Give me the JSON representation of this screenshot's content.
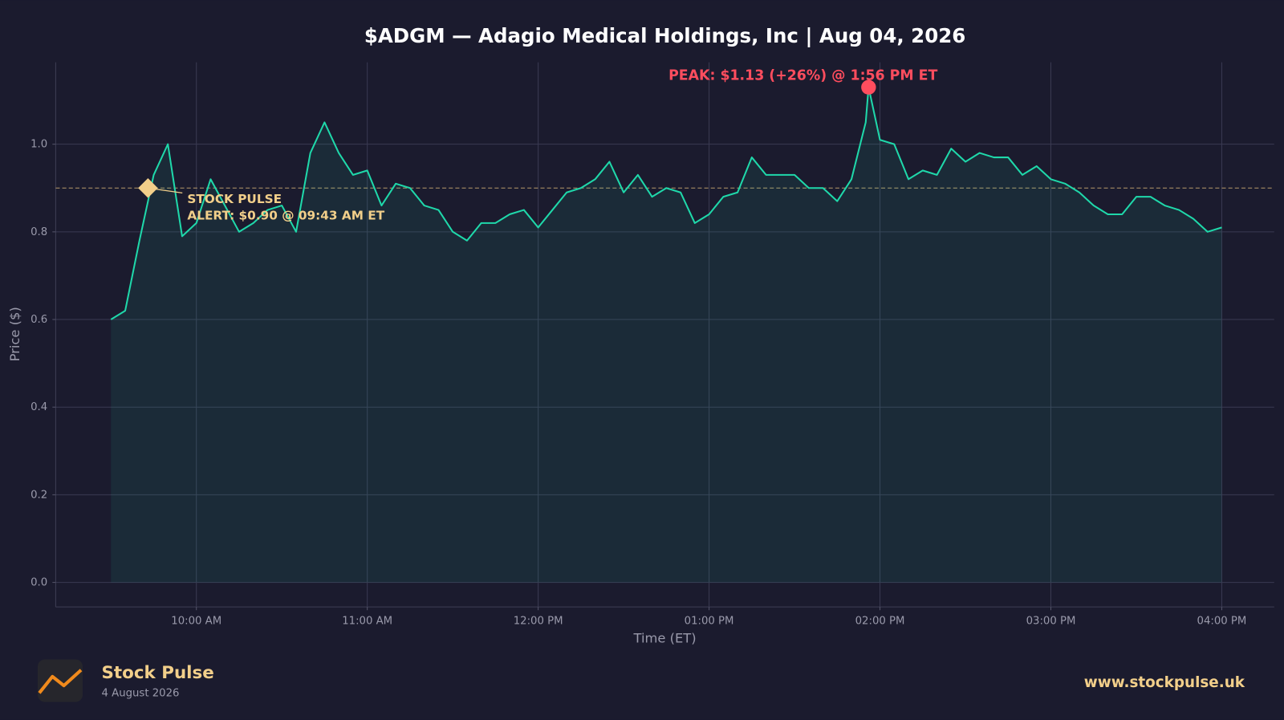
{
  "chart_data": {
    "type": "line",
    "title": "$ADGM — Adagio Medical Holdings, Inc  |  Aug 04, 2026",
    "x_label": "Time (ET)",
    "y_label": "Price ($)",
    "x": [
      570,
      575,
      580,
      585,
      590,
      595,
      600,
      605,
      610,
      615,
      620,
      625,
      630,
      635,
      640,
      645,
      650,
      655,
      660,
      665,
      670,
      675,
      680,
      685,
      690,
      695,
      700,
      705,
      710,
      715,
      720,
      725,
      730,
      735,
      740,
      745,
      750,
      755,
      760,
      765,
      770,
      775,
      780,
      785,
      790,
      795,
      800,
      805,
      810,
      815,
      820,
      825,
      830,
      835,
      836,
      840,
      845,
      850,
      855,
      860,
      865,
      870,
      875,
      880,
      885,
      890,
      895,
      900,
      905,
      910,
      915,
      920,
      925,
      930,
      935,
      940,
      945,
      950,
      955,
      960
    ],
    "series": [
      {
        "color": "#1fd8aa",
        "values": [
          0.6,
          0.62,
          0.78,
          0.93,
          1.0,
          0.79,
          0.82,
          0.92,
          0.86,
          0.8,
          0.82,
          0.85,
          0.86,
          0.8,
          0.98,
          1.05,
          0.98,
          0.93,
          0.94,
          0.86,
          0.91,
          0.9,
          0.86,
          0.85,
          0.8,
          0.78,
          0.82,
          0.82,
          0.84,
          0.85,
          0.81,
          0.85,
          0.89,
          0.9,
          0.92,
          0.96,
          0.89,
          0.93,
          0.88,
          0.9,
          0.89,
          0.82,
          0.84,
          0.88,
          0.89,
          0.97,
          0.93,
          0.93,
          0.93,
          0.9,
          0.9,
          0.87,
          0.92,
          1.05,
          1.13,
          1.01,
          1.0,
          0.92,
          0.94,
          0.93,
          0.99,
          0.96,
          0.98,
          0.97,
          0.97,
          0.93,
          0.95,
          0.92,
          0.91,
          0.89,
          0.86,
          0.84,
          0.84,
          0.88,
          0.88,
          0.86,
          0.85,
          0.83,
          0.8,
          0.81
        ]
      }
    ],
    "xlim": [
      550.6,
      978.4
    ],
    "xticks": [
      {
        "value": 600,
        "label": "10:00 AM"
      },
      {
        "value": 660,
        "label": "11:00 AM"
      },
      {
        "value": 720,
        "label": "12:00 PM"
      },
      {
        "value": 780,
        "label": "01:00 PM"
      },
      {
        "value": 840,
        "label": "02:00 PM"
      },
      {
        "value": 900,
        "label": "03:00 PM"
      },
      {
        "value": 960,
        "label": "04:00 PM"
      }
    ],
    "ylim": [
      -0.056,
      1.187
    ],
    "yticks": [
      {
        "value": 0,
        "label": "0.0"
      },
      0.2,
      0.4,
      0.6,
      0.8,
      {
        "value": 1,
        "label": "1.0"
      }
    ],
    "grid": true,
    "reference_line": {
      "value": 0.9,
      "color": "#b59a6a"
    },
    "annotations": [
      {
        "text": "PEAK: $1.13 (+26%) @ 1:56 PM ET",
        "x": 836,
        "y": 1.13,
        "color": "#ff4d5e"
      },
      {
        "text": [
          "STOCK PULSE",
          "ALERT: $0.90 @ 09:43 AM ET"
        ],
        "x": 583,
        "y": 0.9,
        "color": "#f2cf8a"
      }
    ]
  },
  "footer": {
    "brand": "Stock Pulse",
    "date": "4 August 2026",
    "url": "www.stockpulse.uk"
  }
}
